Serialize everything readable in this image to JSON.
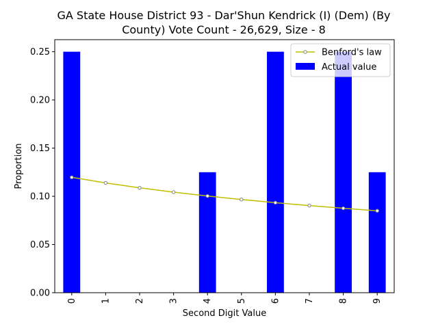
{
  "chart_data": {
    "type": "bar",
    "title_line1": "GA State House District 93 - Dar'Shun Kendrick (I) (Dem) (By",
    "title_line2": "County) Vote Count - 26,629, Size - 8",
    "xlabel": "Second Digit Value",
    "ylabel": "Proportion",
    "categories": [
      "0",
      "1",
      "2",
      "3",
      "4",
      "5",
      "6",
      "7",
      "8",
      "9"
    ],
    "ylim": [
      0,
      0.2625
    ],
    "yticks": [
      "0.00",
      "0.05",
      "0.10",
      "0.15",
      "0.20",
      "0.25"
    ],
    "ytick_values": [
      0,
      0.05,
      0.1,
      0.15,
      0.2,
      0.25
    ],
    "series": [
      {
        "name": "Actual value",
        "kind": "bar",
        "color": "#0000ff",
        "values": [
          0.25,
          0,
          0,
          0,
          0.125,
          0,
          0.25,
          0,
          0.25,
          0.125
        ]
      },
      {
        "name": "Benford's law",
        "kind": "line",
        "color": "#bfbf00",
        "marker_color": "#808080",
        "values": [
          0.1197,
          0.1139,
          0.1088,
          0.1043,
          0.1003,
          0.0967,
          0.0934,
          0.0904,
          0.0876,
          0.085
        ]
      }
    ],
    "legend": [
      "Benford's law",
      "Actual value"
    ],
    "legend_placement": "top-right",
    "grid": false
  }
}
